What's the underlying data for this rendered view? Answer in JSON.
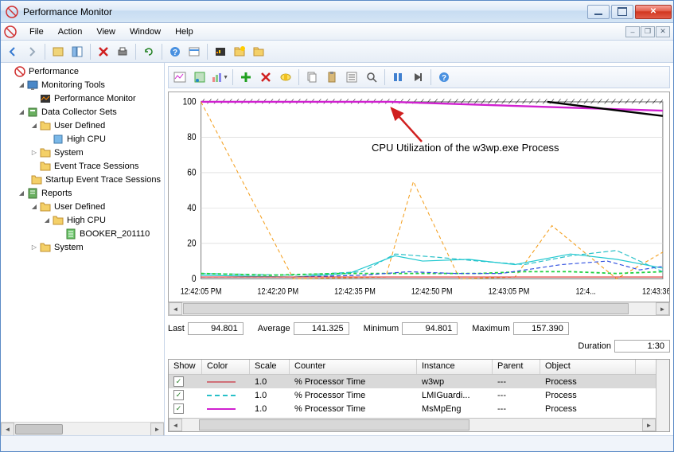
{
  "window": {
    "title": "Performance Monitor"
  },
  "menubar": {
    "items": [
      "File",
      "Action",
      "View",
      "Window",
      "Help"
    ]
  },
  "tree": {
    "root": "Performance",
    "nodes": [
      {
        "indent": 0,
        "exp": "",
        "icon": "perf",
        "label": "Performance"
      },
      {
        "indent": 1,
        "exp": "▾",
        "icon": "monitor",
        "label": "Monitoring Tools"
      },
      {
        "indent": 2,
        "exp": "",
        "icon": "perfmon",
        "label": "Performance Monitor"
      },
      {
        "indent": 1,
        "exp": "▾",
        "icon": "dcs",
        "label": "Data Collector Sets"
      },
      {
        "indent": 2,
        "exp": "▾",
        "icon": "folder",
        "label": "User Defined"
      },
      {
        "indent": 3,
        "exp": "",
        "icon": "bluebox",
        "label": "High CPU"
      },
      {
        "indent": 2,
        "exp": "▸",
        "icon": "folder",
        "label": "System"
      },
      {
        "indent": 2,
        "exp": "",
        "icon": "folder",
        "label": "Event Trace Sessions"
      },
      {
        "indent": 2,
        "exp": "",
        "icon": "folder",
        "label": "Startup Event Trace Sessions"
      },
      {
        "indent": 1,
        "exp": "▾",
        "icon": "reports",
        "label": "Reports"
      },
      {
        "indent": 2,
        "exp": "▾",
        "icon": "folder",
        "label": "User Defined"
      },
      {
        "indent": 3,
        "exp": "▾",
        "icon": "folder",
        "label": "High CPU"
      },
      {
        "indent": 4,
        "exp": "",
        "icon": "greenrep",
        "label": "BOOKER_201110"
      },
      {
        "indent": 2,
        "exp": "▸",
        "icon": "folder",
        "label": "System"
      }
    ]
  },
  "chart": {
    "ylim": [
      0,
      100
    ],
    "yticks": [
      0,
      20,
      40,
      60,
      80,
      100
    ],
    "xlabels": [
      "12:42:05 PM",
      "12:42:20 PM",
      "12:42:35 PM",
      "12:42:50 PM",
      "12:43:05 PM",
      "12:4...",
      "12:43:36 PM"
    ],
    "annotation_text": "CPU Utilization of the w3wp.exe Process",
    "background_color": "#ffffff",
    "grid_color": "#d0d0d0",
    "hatch_color": "#000000",
    "series": {
      "magenta_top": {
        "color": "#d020d0",
        "width": 2,
        "points": [
          [
            0,
            100
          ],
          [
            41,
            100
          ],
          [
            100,
            95
          ]
        ]
      },
      "black_top": {
        "color": "#000000",
        "width": 2,
        "points": [
          [
            75,
            100
          ],
          [
            100,
            92
          ]
        ]
      },
      "orange_dash": {
        "color": "#f4a020",
        "width": 1,
        "dash": "4 3",
        "points": [
          [
            0,
            100
          ],
          [
            20,
            0
          ],
          [
            40,
            1
          ],
          [
            46,
            55
          ],
          [
            56,
            0
          ],
          [
            68,
            1
          ],
          [
            76,
            30
          ],
          [
            90,
            0
          ],
          [
            100,
            15
          ]
        ]
      },
      "cyan_dash": {
        "color": "#28c0c8",
        "width": 1,
        "dash": "6 3",
        "points": [
          [
            0,
            3
          ],
          [
            20,
            2
          ],
          [
            35,
            4
          ],
          [
            42,
            14
          ],
          [
            52,
            12
          ],
          [
            60,
            10
          ],
          [
            70,
            8
          ],
          [
            80,
            13
          ],
          [
            90,
            16
          ],
          [
            100,
            4
          ]
        ]
      },
      "cyan_solid": {
        "color": "#20c8d0",
        "width": 1,
        "points": [
          [
            0,
            2
          ],
          [
            20,
            1
          ],
          [
            32,
            3
          ],
          [
            42,
            13
          ],
          [
            48,
            10
          ],
          [
            58,
            11
          ],
          [
            68,
            8
          ],
          [
            80,
            14
          ],
          [
            90,
            11
          ],
          [
            100,
            6
          ]
        ]
      },
      "green_dash": {
        "color": "#20d040",
        "width": 1.5,
        "dash": "4 3",
        "points": [
          [
            0,
            3
          ],
          [
            15,
            2
          ],
          [
            30,
            3
          ],
          [
            40,
            3
          ],
          [
            50,
            3
          ],
          [
            60,
            3
          ],
          [
            70,
            4
          ],
          [
            80,
            4
          ],
          [
            90,
            3
          ],
          [
            100,
            4
          ]
        ]
      },
      "blue_dash": {
        "color": "#3050e0",
        "width": 1,
        "dash": "5 3",
        "points": [
          [
            0,
            1
          ],
          [
            20,
            1
          ],
          [
            35,
            2
          ],
          [
            45,
            4
          ],
          [
            55,
            3
          ],
          [
            65,
            3
          ],
          [
            78,
            8
          ],
          [
            88,
            10
          ],
          [
            95,
            5
          ],
          [
            100,
            7
          ]
        ]
      },
      "red": {
        "color": "#e03030",
        "width": 1,
        "points": [
          [
            0,
            1
          ],
          [
            20,
            1
          ],
          [
            35,
            1
          ],
          [
            50,
            1
          ],
          [
            65,
            1
          ],
          [
            80,
            1
          ],
          [
            100,
            1
          ]
        ]
      }
    }
  },
  "stats": {
    "last_label": "Last",
    "last": "94.801",
    "avg_label": "Average",
    "avg": "141.325",
    "min_label": "Minimum",
    "min": "94.801",
    "max_label": "Maximum",
    "max": "157.390",
    "dur_label": "Duration",
    "dur": "1:30"
  },
  "counter_table": {
    "columns": [
      "Show",
      "Color",
      "Scale",
      "Counter",
      "Instance",
      "Parent",
      "Object"
    ],
    "rows": [
      {
        "checked": true,
        "color": "#d07078",
        "dash": "",
        "scale": "1.0",
        "counter": "% Processor Time",
        "instance": "w3wp",
        "parent": "---",
        "object": "Process",
        "selected": true
      },
      {
        "checked": true,
        "color": "#28c0c8",
        "dash": "6 3",
        "scale": "1.0",
        "counter": "% Processor Time",
        "instance": "LMIGuardi...",
        "parent": "---",
        "object": "Process",
        "selected": false
      },
      {
        "checked": true,
        "color": "#d020d0",
        "dash": "",
        "scale": "1.0",
        "counter": "% Processor Time",
        "instance": "MsMpEng",
        "parent": "---",
        "object": "Process",
        "selected": false
      }
    ]
  }
}
